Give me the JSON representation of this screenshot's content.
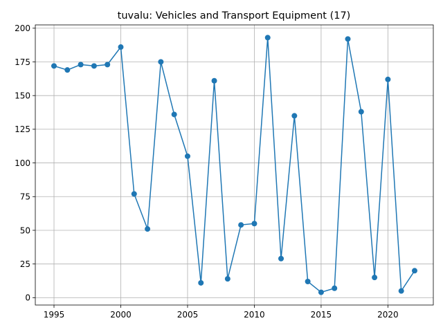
{
  "chart_data": {
    "type": "line",
    "title": "tuvalu: Vehicles and Transport Equipment (17)",
    "xlabel": "",
    "ylabel": "",
    "xlim": [
      1993.6,
      2023.4
    ],
    "ylim": [
      -5.45,
      202.45
    ],
    "x_ticks": [
      1995,
      2000,
      2005,
      2010,
      2015,
      2020
    ],
    "y_ticks": [
      0,
      25,
      50,
      75,
      100,
      125,
      150,
      175,
      200
    ],
    "grid": true,
    "legend": "none",
    "color": "#1f77b4",
    "markers": true,
    "series": [
      {
        "x": [
          1995,
          1996,
          1997,
          1998,
          1999,
          2000,
          2001,
          2002,
          2003,
          2004,
          2005,
          2006,
          2007,
          2008,
          2009,
          2010,
          2011,
          2012,
          2013,
          2014,
          2015,
          2016,
          2017,
          2018,
          2019,
          2020,
          2021,
          2022
        ],
        "values": [
          172,
          169,
          173,
          172,
          173,
          186,
          77,
          51,
          175,
          136,
          105,
          11,
          161,
          14,
          54,
          55,
          193,
          29,
          135,
          12,
          4,
          7,
          192,
          138,
          15,
          162,
          5,
          20
        ]
      }
    ]
  }
}
